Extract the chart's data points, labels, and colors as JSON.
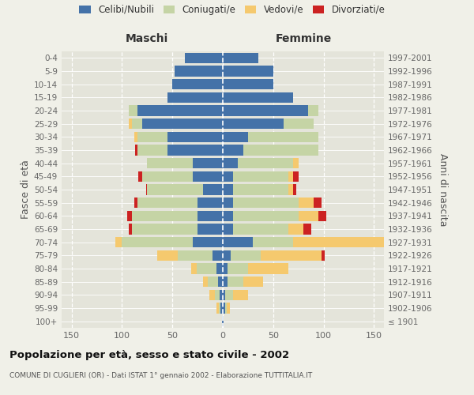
{
  "age_groups": [
    "100+",
    "95-99",
    "90-94",
    "85-89",
    "80-84",
    "75-79",
    "70-74",
    "65-69",
    "60-64",
    "55-59",
    "50-54",
    "45-49",
    "40-44",
    "35-39",
    "30-34",
    "25-29",
    "20-24",
    "15-19",
    "10-14",
    "5-9",
    "0-4"
  ],
  "birth_years": [
    "≤ 1901",
    "1902-1906",
    "1907-1911",
    "1912-1916",
    "1917-1921",
    "1922-1926",
    "1927-1931",
    "1932-1936",
    "1937-1941",
    "1942-1946",
    "1947-1951",
    "1952-1956",
    "1957-1961",
    "1962-1966",
    "1967-1971",
    "1972-1976",
    "1977-1981",
    "1982-1986",
    "1987-1991",
    "1992-1996",
    "1997-2001"
  ],
  "maschi": {
    "celibi": [
      1,
      2,
      3,
      5,
      6,
      10,
      30,
      25,
      25,
      25,
      20,
      30,
      30,
      55,
      55,
      80,
      85,
      55,
      50,
      48,
      38
    ],
    "coniugati": [
      0,
      2,
      5,
      10,
      20,
      35,
      70,
      65,
      65,
      60,
      55,
      50,
      45,
      30,
      30,
      10,
      8,
      0,
      0,
      0,
      0
    ],
    "vedovi": [
      0,
      2,
      5,
      5,
      5,
      20,
      7,
      0,
      0,
      0,
      0,
      0,
      0,
      0,
      3,
      3,
      0,
      0,
      0,
      0,
      0
    ],
    "divorziati": [
      0,
      0,
      0,
      0,
      0,
      0,
      0,
      3,
      5,
      3,
      1,
      4,
      0,
      2,
      0,
      0,
      0,
      0,
      0,
      0,
      0
    ]
  },
  "femmine": {
    "nubili": [
      1,
      2,
      2,
      5,
      5,
      8,
      30,
      10,
      10,
      10,
      10,
      10,
      15,
      20,
      25,
      60,
      85,
      70,
      50,
      50,
      35
    ],
    "coniugate": [
      0,
      2,
      8,
      15,
      20,
      30,
      40,
      55,
      65,
      65,
      55,
      55,
      55,
      75,
      70,
      30,
      10,
      0,
      0,
      0,
      0
    ],
    "vedove": [
      0,
      3,
      15,
      20,
      40,
      60,
      130,
      15,
      20,
      15,
      5,
      5,
      5,
      0,
      0,
      0,
      0,
      0,
      0,
      0,
      0
    ],
    "divorziate": [
      0,
      0,
      0,
      0,
      0,
      3,
      0,
      8,
      8,
      8,
      3,
      5,
      0,
      0,
      0,
      0,
      0,
      0,
      0,
      0,
      0
    ]
  },
  "colors": {
    "celibi": "#4472a8",
    "coniugati": "#c5d4a5",
    "vedovi": "#f5c96e",
    "divorziati": "#cc2222"
  },
  "xlim": 160,
  "title": "Popolazione per età, sesso e stato civile - 2002",
  "subtitle": "COMUNE DI CUGLIERI (OR) - Dati ISTAT 1° gennaio 2002 - Elaborazione TUTTITALIA.IT",
  "ylabel_left": "Fasce di età",
  "ylabel_right": "Anni di nascita",
  "xlabel_maschi": "Maschi",
  "xlabel_femmine": "Femmine",
  "bg_color": "#f0f0e8",
  "plot_bg": "#e4e4da",
  "legend_labels": [
    "Celibi/Nubili",
    "Coniugati/e",
    "Vedovi/e",
    "Divorziati/e"
  ],
  "xticks": [
    -150,
    -100,
    -50,
    0,
    50,
    100,
    150
  ]
}
